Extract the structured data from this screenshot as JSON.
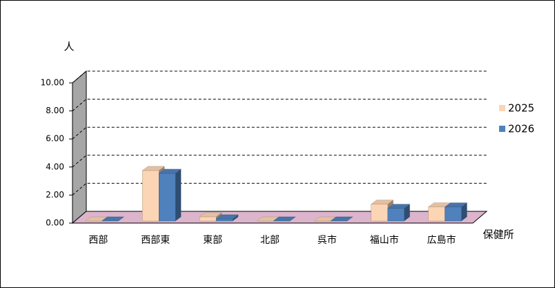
{
  "chart_data": {
    "type": "bar3d",
    "y_label": "人",
    "x_label": "保健所",
    "categories": [
      "西部",
      "西部東",
      "東部",
      "北部",
      "呉市",
      "福山市",
      "広島市"
    ],
    "series": [
      {
        "name": "2025",
        "color": "#fcd5b5",
        "values": [
          0,
          3.6,
          0.3,
          0,
          0,
          1.2,
          1.0
        ]
      },
      {
        "name": "2026",
        "color": "#4f81bd",
        "values": [
          0,
          3.4,
          0.15,
          0,
          0,
          0.9,
          1.0
        ]
      }
    ],
    "ylim": [
      0,
      10
    ],
    "yticks": [
      {
        "value": 0,
        "label": "0.00"
      },
      {
        "value": 2,
        "label": "2.00"
      },
      {
        "value": 4,
        "label": "4.00"
      },
      {
        "value": 6,
        "label": "6.00"
      },
      {
        "value": 8,
        "label": "8.00"
      },
      {
        "value": 10,
        "label": "10.00"
      }
    ],
    "grid": true,
    "legend": "right"
  }
}
